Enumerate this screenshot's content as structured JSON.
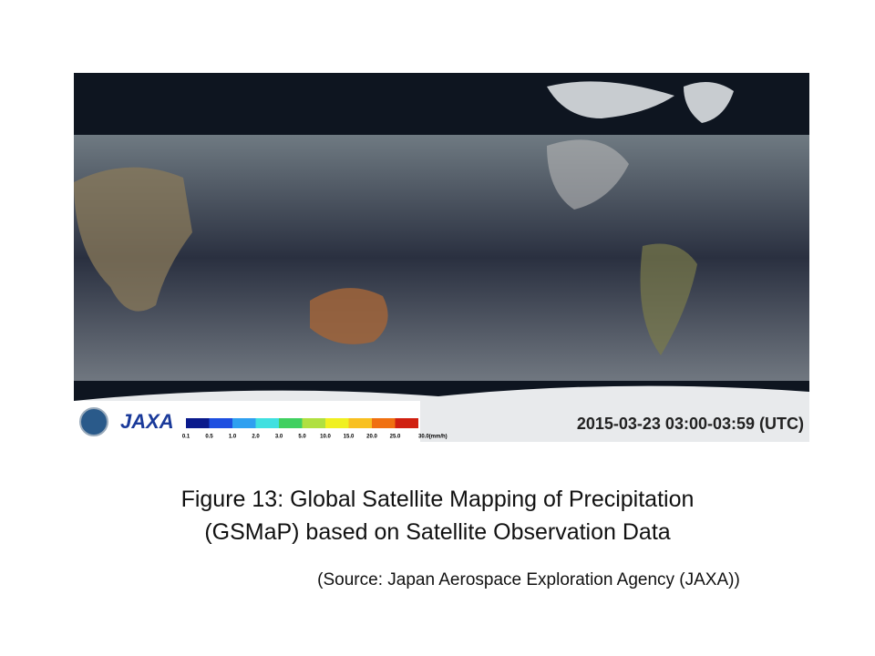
{
  "figure": {
    "logo": "JAXA",
    "timestamp": "2015-03-23  03:00-03:59 (UTC)",
    "legend": {
      "labels": [
        "0.1",
        "0.5",
        "1.0",
        "2.0",
        "3.0",
        "5.0",
        "10.0",
        "15.0",
        "20.0",
        "25.0",
        "30.0(mm/h)"
      ],
      "colors": [
        "#0a1a8c",
        "#1e4fe0",
        "#2fa0f0",
        "#40e0e0",
        "#40d060",
        "#b0e040",
        "#f0f020",
        "#f8c020",
        "#f07010",
        "#d02010"
      ]
    }
  },
  "caption": {
    "lines": [
      "Figure 13: Global Satellite Mapping of Precipitation",
      "(GSMaP) based on Satellite Observation Data"
    ],
    "source": "(Source: Japan Aerospace Exploration Agency (JAXA))"
  }
}
